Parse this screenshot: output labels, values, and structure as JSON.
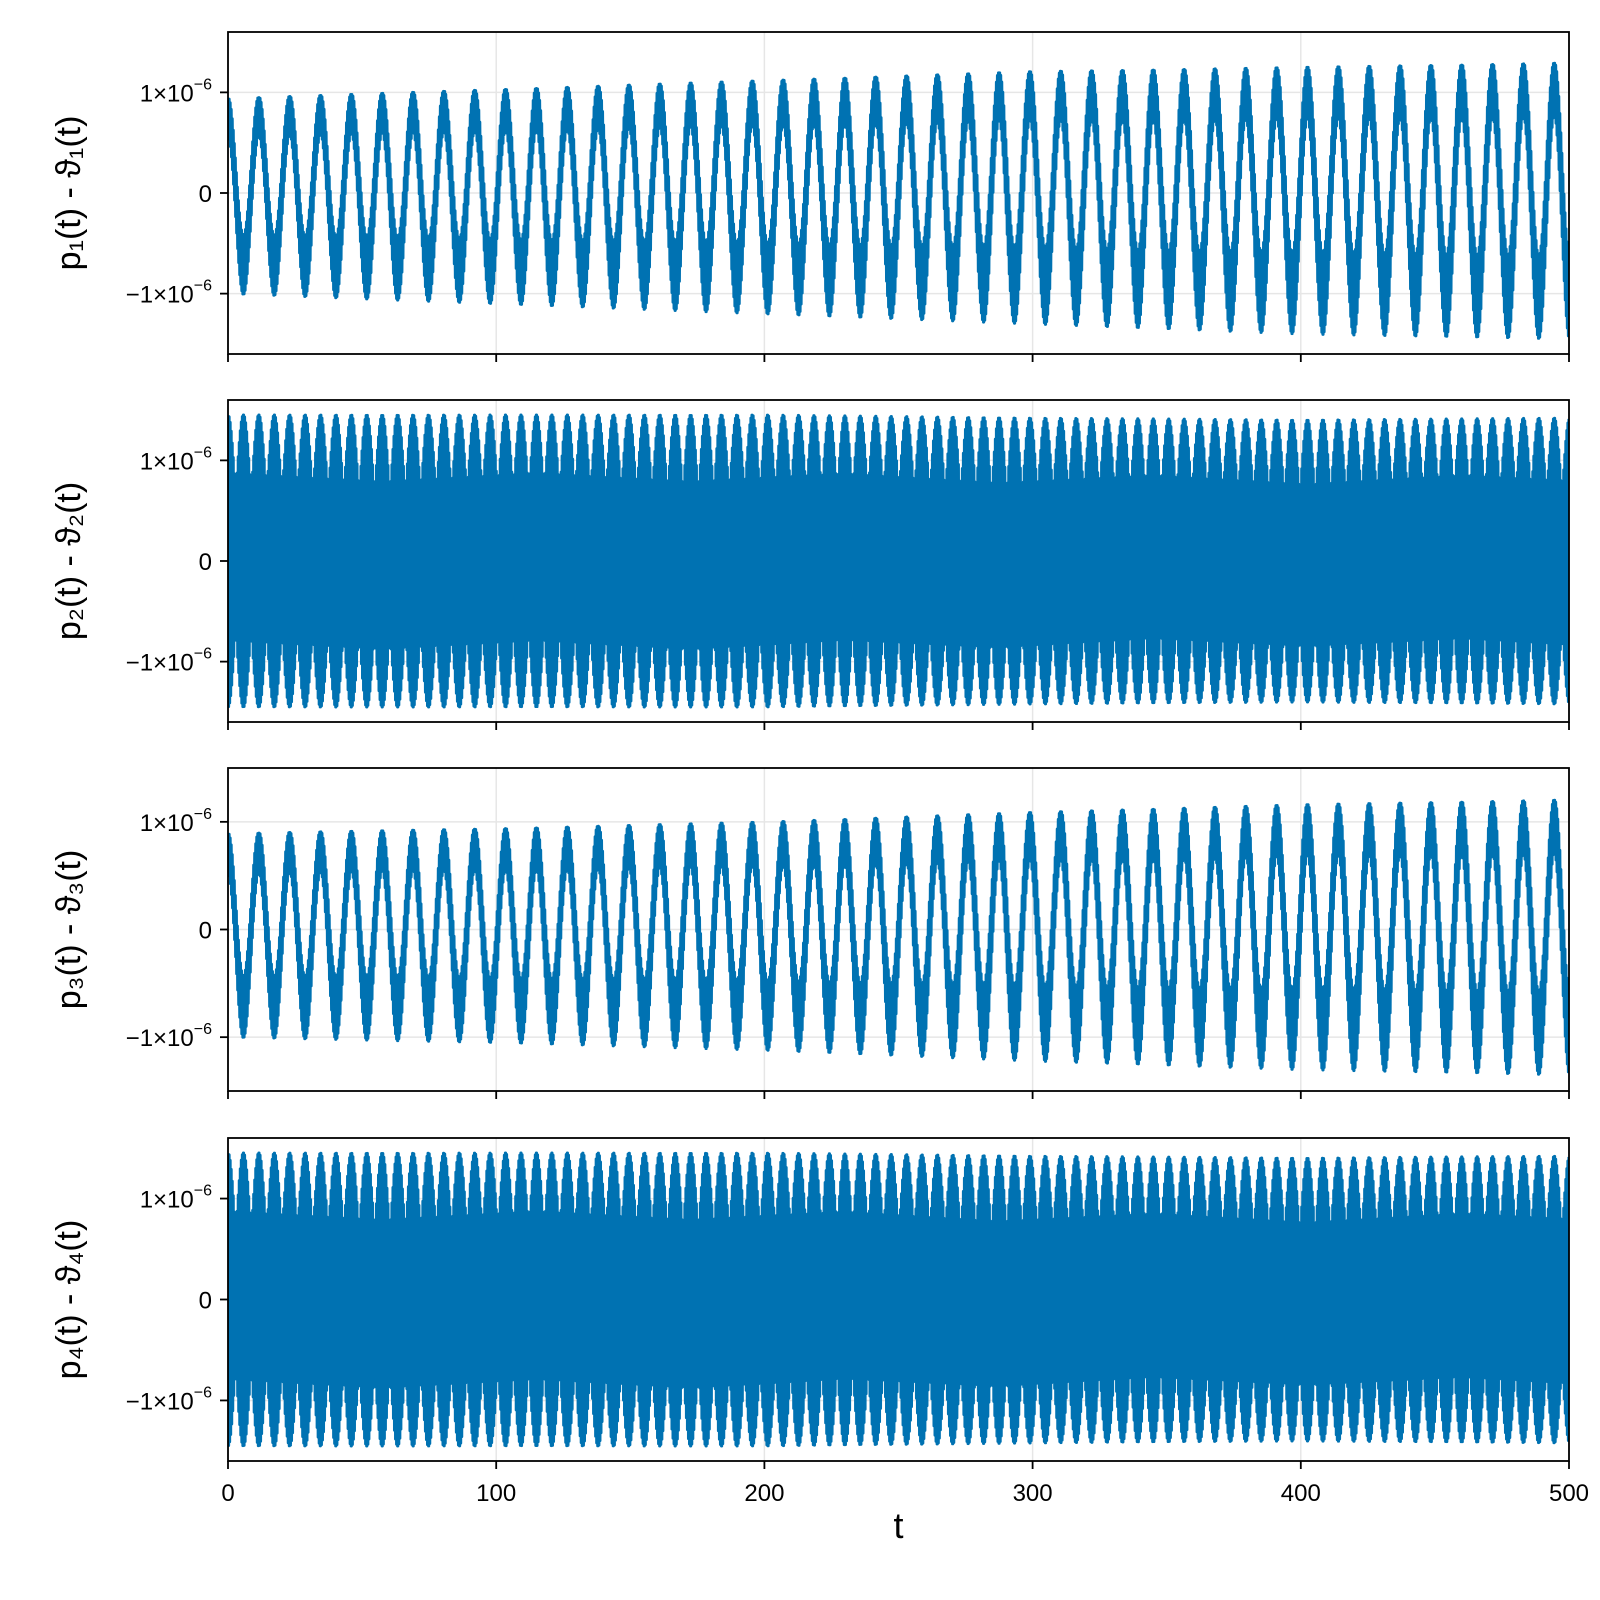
{
  "chart_data": [
    {
      "type": "line",
      "ylabel": "p₁(t) - ϑ₁(t)",
      "xlabel": "",
      "xlim": [
        0,
        500
      ],
      "ylim": [
        -1.6e-06,
        1.6e-06
      ],
      "xticks": [
        0,
        100,
        200,
        300,
        400,
        500
      ],
      "xtick_labels": [],
      "yticks": [
        -1e-06,
        0,
        1e-06
      ],
      "ytick_labels": [
        {
          "mantissa": "−1×10",
          "exponent": "−6"
        },
        {
          "mantissa": "0",
          "exponent": ""
        },
        {
          "mantissa": "1×10",
          "exponent": "−6"
        }
      ],
      "grid": true,
      "series": [
        {
          "color": "#0072b2",
          "x": [
            0,
            100,
            200,
            300,
            400,
            500
          ],
          "envelope_max": [
            1.05e-06,
            1.15e-06,
            1.25e-06,
            1.35e-06,
            1.4e-06,
            1.45e-06
          ],
          "envelope_min": [
            -1e-06,
            -1.1e-06,
            -1.2e-06,
            -1.3e-06,
            -1.4e-06,
            -1.45e-06
          ],
          "oscillation_period": 11.5
        }
      ]
    },
    {
      "type": "line",
      "ylabel": "p₂(t) - ϑ₂(t)",
      "xlabel": "",
      "xlim": [
        0,
        500
      ],
      "ylim": [
        -1.6e-06,
        1.6e-06
      ],
      "xticks": [
        0,
        100,
        200,
        300,
        400,
        500
      ],
      "xtick_labels": [],
      "yticks": [
        -1e-06,
        0,
        1e-06
      ],
      "ytick_labels": [
        {
          "mantissa": "−1×10",
          "exponent": "−6"
        },
        {
          "mantissa": "0",
          "exponent": ""
        },
        {
          "mantissa": "1×10",
          "exponent": "−6"
        }
      ],
      "grid": true,
      "series": [
        {
          "color": "#0072b2",
          "x": [
            0,
            100,
            200,
            300,
            400,
            500
          ],
          "envelope_max": [
            1.45e-06,
            1.45e-06,
            1.45e-06,
            1.42e-06,
            1.4e-06,
            1.42e-06
          ],
          "envelope_min": [
            -1.45e-06,
            -1.45e-06,
            -1.45e-06,
            -1.42e-06,
            -1.4e-06,
            -1.42e-06
          ],
          "oscillation_period": 11.5
        }
      ]
    },
    {
      "type": "line",
      "ylabel": "p₃(t) - ϑ₃(t)",
      "xlabel": "",
      "xlim": [
        0,
        500
      ],
      "ylim": [
        -1.5e-06,
        1.5e-06
      ],
      "xticks": [
        0,
        100,
        200,
        300,
        400,
        500
      ],
      "xtick_labels": [],
      "yticks": [
        -1e-06,
        0,
        1e-06
      ],
      "ytick_labels": [
        {
          "mantissa": "−1×10",
          "exponent": "−6"
        },
        {
          "mantissa": "0",
          "exponent": ""
        },
        {
          "mantissa": "1×10",
          "exponent": "−6"
        }
      ],
      "grid": true,
      "series": [
        {
          "color": "#0072b2",
          "x": [
            0,
            100,
            200,
            300,
            400,
            500
          ],
          "envelope_max": [
            1e-06,
            1.05e-06,
            1.12e-06,
            1.22e-06,
            1.3e-06,
            1.35e-06
          ],
          "envelope_min": [
            -1e-06,
            -1.05e-06,
            -1.12e-06,
            -1.22e-06,
            -1.3e-06,
            -1.35e-06
          ],
          "oscillation_period": 11.5
        }
      ]
    },
    {
      "type": "line",
      "ylabel": "p₄(t) - ϑ₄(t)",
      "xlabel": "t",
      "xlim": [
        0,
        500
      ],
      "ylim": [
        -1.6e-06,
        1.6e-06
      ],
      "xticks": [
        0,
        100,
        200,
        300,
        400,
        500
      ],
      "xtick_labels": [
        "0",
        "100",
        "200",
        "300",
        "400",
        "500"
      ],
      "yticks": [
        -1e-06,
        0,
        1e-06
      ],
      "ytick_labels": [
        {
          "mantissa": "−1×10",
          "exponent": "−6"
        },
        {
          "mantissa": "0",
          "exponent": ""
        },
        {
          "mantissa": "1×10",
          "exponent": "−6"
        }
      ],
      "grid": true,
      "series": [
        {
          "color": "#0072b2",
          "x": [
            0,
            100,
            200,
            300,
            400,
            500
          ],
          "envelope_max": [
            1.45e-06,
            1.45e-06,
            1.45e-06,
            1.42e-06,
            1.4e-06,
            1.42e-06
          ],
          "envelope_min": [
            -1.45e-06,
            -1.45e-06,
            -1.45e-06,
            -1.42e-06,
            -1.4e-06,
            -1.42e-06
          ],
          "oscillation_period": 11.5
        }
      ]
    }
  ]
}
